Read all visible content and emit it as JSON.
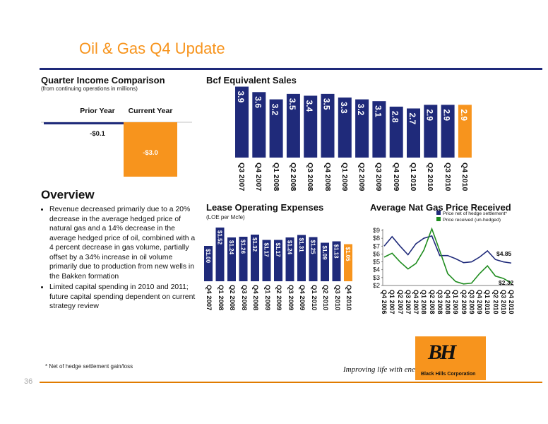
{
  "slide": {
    "title": "Oil & Gas Q4 Update",
    "page_number": "36",
    "footnote": "* Net of hedge settlement gain/loss",
    "tagline": "Improving life with energy",
    "logo": {
      "text": "BH",
      "corp": "Black Hills Corporation"
    },
    "colors": {
      "accent": "#f7941d",
      "navy": "#1f2a7a",
      "green": "#1e8c1e"
    }
  },
  "income_comparison": {
    "title": "Quarter Income Comparison",
    "subtitle": "(from continuing operations in millions)",
    "columns": [
      "Prior Year",
      "Current Year"
    ],
    "chart_data": {
      "type": "bar",
      "categories": [
        "Prior Year",
        "Current Year"
      ],
      "values": [
        -0.1,
        -3.0
      ],
      "labels": [
        "-$0.1",
        "-$3.0"
      ],
      "ylim": [
        -3.0,
        0
      ]
    }
  },
  "bcf_sales": {
    "title": "Bcf Equivalent Sales",
    "chart_data": {
      "type": "bar",
      "categories": [
        "Q3 2007",
        "Q4 2007",
        "Q1 2008",
        "Q2 2008",
        "Q3 2008",
        "Q4 2008",
        "Q1 2009",
        "Q2 2009",
        "Q3 2009",
        "Q4 2009",
        "Q1 2010",
        "Q2 2010",
        "Q3 2010",
        "Q4 2010"
      ],
      "values": [
        3.9,
        3.6,
        3.2,
        3.5,
        3.4,
        3.5,
        3.3,
        3.2,
        3.1,
        2.8,
        2.7,
        2.9,
        2.9,
        2.9
      ],
      "labels": [
        "3.9",
        "3.6",
        "3.2",
        "3.5",
        "3.4",
        "3.5",
        "3.3",
        "3.2",
        "3.1",
        "2.8",
        "2.7",
        "2.9",
        "2.9",
        "2.9"
      ],
      "highlight_index": 13,
      "ylim": [
        0,
        4
      ]
    }
  },
  "overview": {
    "title": "Overview",
    "bullets": [
      "Revenue decreased primarily due to a 20% decrease in the average hedged price of natural gas and a 14% decrease in the average hedged price of oil, combined with a 4 percent decrease in gas volume, partially offset by a 34% increase in oil volume primarily due to production from new wells in the Bakken formation",
      "Limited capital spending in 2010 and 2011; future capital spending dependent on current strategy review"
    ]
  },
  "loe": {
    "title": "Lease Operating Expenses",
    "subtitle": "(LOE per Mcfe)",
    "chart_data": {
      "type": "bar",
      "categories": [
        "Q4 2007",
        "Q1 2008",
        "Q2 2008",
        "Q3 2008",
        "Q4 2008",
        "Q1 2009",
        "Q2 2009",
        "Q3 2009",
        "Q4 2009",
        "Q1 2010",
        "Q2 2010",
        "Q3 2010",
        "Q4 2010"
      ],
      "values": [
        1.0,
        1.52,
        1.24,
        1.26,
        1.32,
        1.17,
        1.17,
        1.24,
        1.31,
        1.25,
        1.09,
        1.13,
        1.05
      ],
      "labels": [
        "$1.00",
        "$1.52",
        "$1.24",
        "$1.26",
        "$1.32",
        "$1.17",
        "$1.17",
        "$1.24",
        "$1.31",
        "$1.25",
        "$1.09",
        "$1.13",
        "$1.05"
      ],
      "highlight_index": 12,
      "ylim": [
        0,
        1.6
      ]
    }
  },
  "gas_price": {
    "title": "Average Nat Gas Price Received",
    "chart_data": {
      "type": "line",
      "x": [
        "Q4 2006",
        "Q1 2007",
        "Q2 2007",
        "Q3 2007",
        "Q4 2007",
        "Q1 2008",
        "Q2 2008",
        "Q3 2008",
        "Q4 2008",
        "Q1 2009",
        "Q2 2009",
        "Q3 2009",
        "Q4 2009",
        "Q1 2010",
        "Q2 2010",
        "Q3 2010",
        "Q4 2010"
      ],
      "series": [
        {
          "name": "Price net of hedge settlement*",
          "values": [
            7.0,
            8.2,
            7.0,
            5.9,
            7.3,
            8.0,
            8.3,
            5.8,
            5.8,
            5.4,
            4.9,
            5.0,
            5.6,
            6.4,
            5.3,
            5.0,
            4.85
          ]
        },
        {
          "name": "Price received (un-hedged)",
          "values": [
            5.6,
            6.1,
            5.0,
            4.1,
            4.8,
            6.5,
            9.2,
            6.4,
            3.5,
            2.5,
            2.2,
            2.3,
            3.5,
            4.5,
            3.2,
            2.9,
            2.32
          ]
        }
      ],
      "end_labels": [
        "$4.85",
        "$2.32"
      ],
      "yticks": [
        "$2",
        "$3",
        "$4",
        "$5",
        "$6",
        "$7",
        "$8",
        "$9"
      ],
      "ylim": [
        2,
        9
      ]
    }
  }
}
